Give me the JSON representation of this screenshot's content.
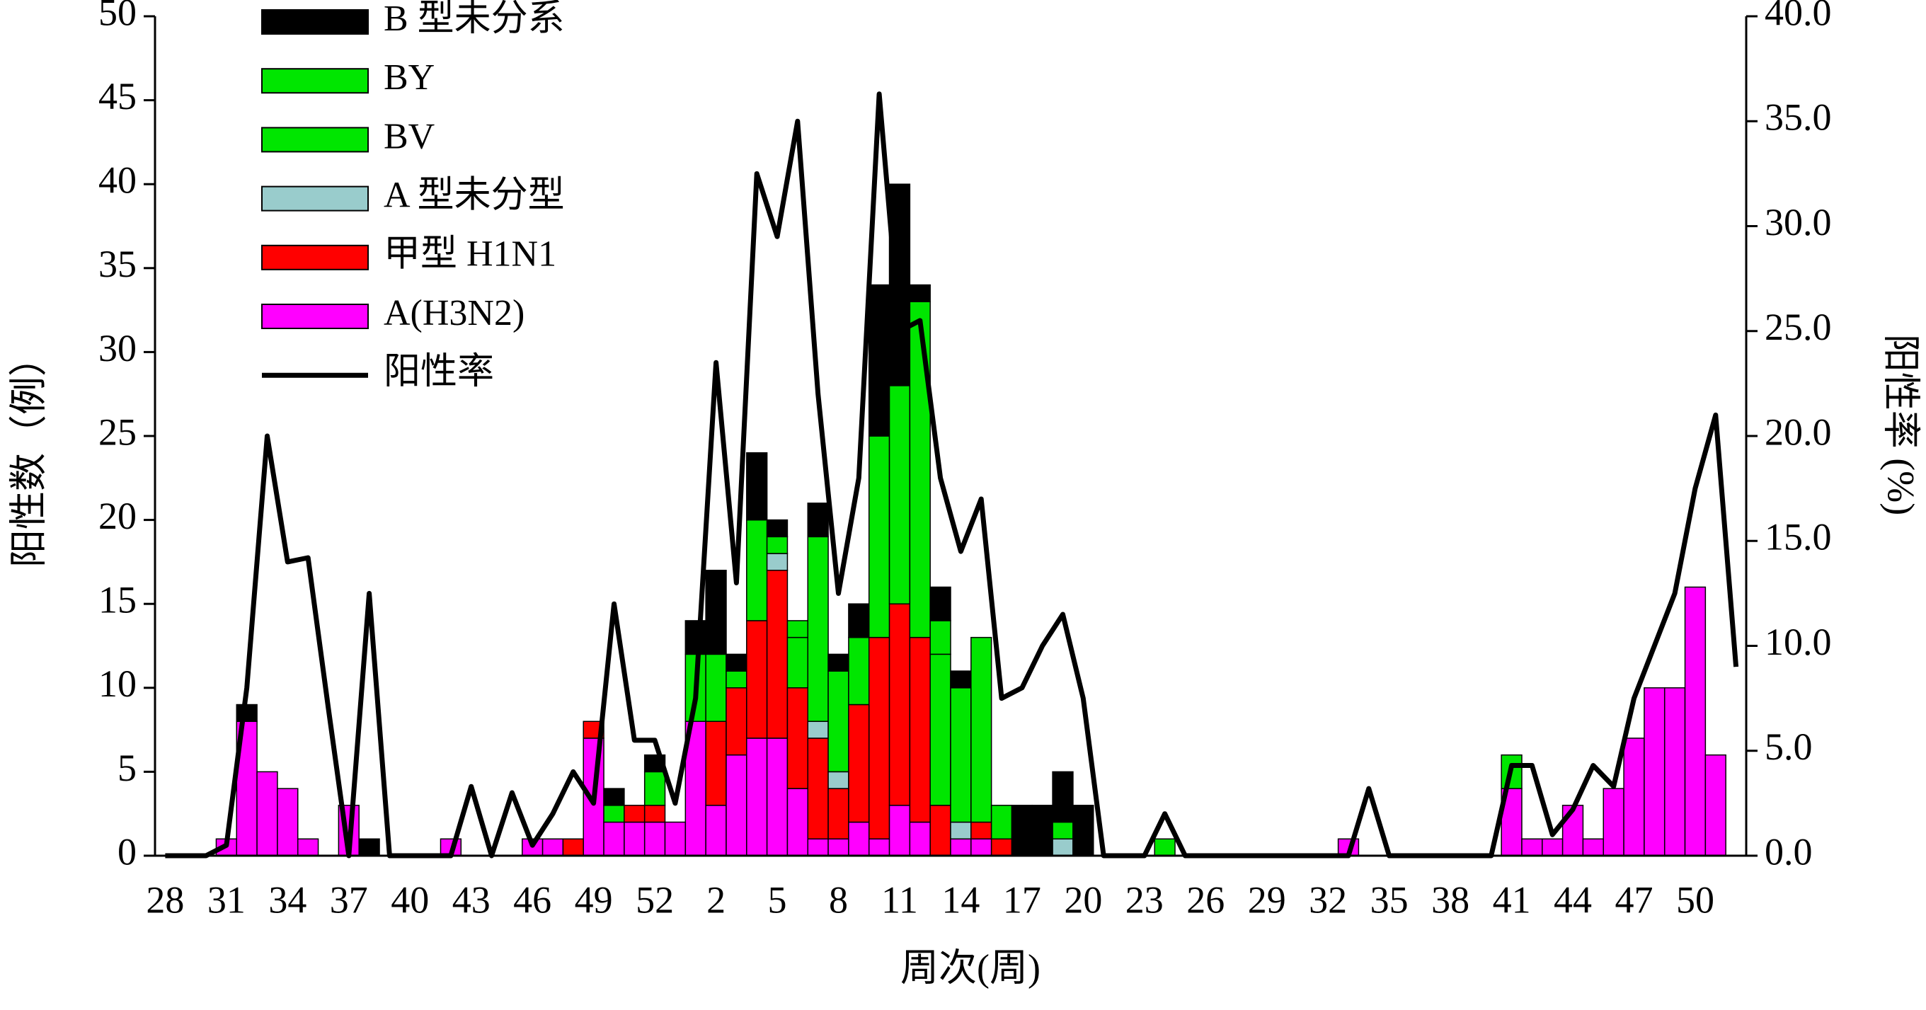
{
  "chart_data": {
    "type": "bar",
    "stacked": true,
    "x_label": "周次(周)",
    "y_label": "阳性数（例）",
    "y2_label": "阳性率 (%)",
    "categories": [
      "28",
      null,
      null,
      "31",
      null,
      null,
      "34",
      null,
      null,
      "37",
      null,
      null,
      "40",
      null,
      null,
      "43",
      null,
      null,
      "46",
      null,
      null,
      "49",
      null,
      null,
      "52",
      null,
      null,
      "2",
      null,
      null,
      "5",
      null,
      null,
      "8",
      null,
      null,
      "11",
      null,
      null,
      "14",
      null,
      null,
      "17",
      null,
      null,
      "20",
      null,
      null,
      "23",
      null,
      null,
      "26",
      null,
      null,
      "29",
      null,
      null,
      "32",
      null,
      null,
      "35",
      null,
      null,
      "38",
      null,
      null,
      "41",
      null,
      null,
      "44",
      null,
      null,
      "47",
      null,
      null,
      "50",
      null,
      null
    ],
    "ylim": [
      0,
      50
    ],
    "yticks": [
      0,
      5,
      10,
      15,
      20,
      25,
      30,
      35,
      40,
      45,
      50
    ],
    "y2lim": [
      0,
      40
    ],
    "y2ticks": [
      {
        "value": 0,
        "label": "0.0"
      },
      {
        "value": 5,
        "label": "5.0"
      },
      {
        "value": 10,
        "label": "10.0"
      },
      {
        "value": 15,
        "label": "15.0"
      },
      {
        "value": 20,
        "label": "20.0"
      },
      {
        "value": 25,
        "label": "25.0"
      },
      {
        "value": 30,
        "label": "30.0"
      },
      {
        "value": 35,
        "label": "35.0"
      },
      {
        "value": 40,
        "label": "40.0"
      }
    ],
    "legend": "upper left",
    "series": [
      {
        "name": "B 型未分系",
        "color": "#000000",
        "values": [
          0,
          0,
          0,
          0,
          1,
          0,
          0,
          0,
          0,
          0,
          1,
          0,
          0,
          0,
          0,
          0,
          0,
          0,
          0,
          0,
          0,
          0,
          1,
          0,
          1,
          0,
          2,
          5,
          1,
          4,
          1,
          0,
          2,
          1,
          2,
          9,
          12,
          1,
          2,
          1,
          0,
          0,
          3,
          3,
          3,
          3,
          0,
          0,
          0,
          0,
          0,
          0,
          0,
          0,
          0,
          0,
          0,
          0,
          0,
          0,
          0,
          0,
          0,
          0,
          0,
          0,
          0,
          0,
          0,
          0,
          0,
          0,
          0,
          0,
          0,
          0,
          0,
          0
        ]
      },
      {
        "name": "BY",
        "color": "#00e600",
        "values": [
          0,
          0,
          0,
          0,
          0,
          0,
          0,
          0,
          0,
          0,
          0,
          0,
          0,
          0,
          0,
          0,
          0,
          0,
          0,
          0,
          0,
          0,
          0,
          0,
          0,
          0,
          0,
          0,
          0,
          0,
          0,
          1,
          0,
          0,
          0,
          0,
          0,
          0,
          2,
          0,
          0,
          0,
          0,
          0,
          0,
          0,
          0,
          0,
          0,
          0,
          0,
          0,
          0,
          0,
          0,
          0,
          0,
          0,
          0,
          0,
          0,
          0,
          0,
          0,
          0,
          0,
          0,
          0,
          0,
          0,
          0,
          0,
          0,
          0,
          0,
          0,
          0,
          0
        ]
      },
      {
        "name": "BV",
        "color": "#00e600",
        "values": [
          0,
          0,
          0,
          0,
          0,
          0,
          0,
          0,
          0,
          0,
          0,
          0,
          0,
          0,
          0,
          0,
          0,
          0,
          0,
          0,
          0,
          0,
          1,
          0,
          2,
          0,
          4,
          4,
          1,
          6,
          1,
          3,
          11,
          6,
          4,
          12,
          13,
          20,
          9,
          8,
          11,
          2,
          0,
          0,
          1,
          0,
          0,
          0,
          0,
          1,
          0,
          0,
          0,
          0,
          0,
          0,
          0,
          0,
          0,
          0,
          0,
          0,
          0,
          0,
          0,
          0,
          2,
          0,
          0,
          0,
          0,
          0,
          0,
          0,
          0,
          0,
          0,
          0
        ]
      },
      {
        "name": "A 型未分型",
        "color": "#99cccc",
        "values": [
          0,
          0,
          0,
          0,
          0,
          0,
          0,
          0,
          0,
          0,
          0,
          0,
          0,
          0,
          0,
          0,
          0,
          0,
          0,
          0,
          0,
          0,
          0,
          0,
          0,
          0,
          0,
          0,
          0,
          0,
          1,
          0,
          1,
          1,
          0,
          0,
          0,
          0,
          0,
          1,
          0,
          0,
          0,
          0,
          1,
          0,
          0,
          0,
          0,
          0,
          0,
          0,
          0,
          0,
          0,
          0,
          0,
          0,
          0,
          0,
          0,
          0,
          0,
          0,
          0,
          0,
          0,
          0,
          0,
          0,
          0,
          0,
          0,
          0,
          0,
          0,
          0,
          0
        ]
      },
      {
        "name": "甲型 H1N1",
        "color": "#ff0000",
        "values": [
          0,
          0,
          0,
          0,
          0,
          0,
          0,
          0,
          0,
          0,
          0,
          0,
          0,
          0,
          0,
          0,
          0,
          0,
          0,
          0,
          1,
          1,
          0,
          1,
          1,
          0,
          0,
          5,
          4,
          7,
          10,
          6,
          6,
          3,
          7,
          12,
          12,
          11,
          3,
          0,
          1,
          1,
          0,
          0,
          0,
          0,
          0,
          0,
          0,
          0,
          0,
          0,
          0,
          0,
          0,
          0,
          0,
          0,
          0,
          0,
          0,
          0,
          0,
          0,
          0,
          0,
          0,
          0,
          0,
          0,
          0,
          0,
          0,
          0,
          0,
          0,
          0,
          0
        ]
      },
      {
        "name": "A(H3N2)",
        "color": "#ff00ff",
        "values": [
          0,
          0,
          0,
          1,
          8,
          5,
          4,
          1,
          0,
          3,
          0,
          0,
          0,
          0,
          1,
          0,
          0,
          0,
          1,
          1,
          0,
          7,
          2,
          2,
          2,
          2,
          8,
          3,
          6,
          7,
          7,
          4,
          1,
          1,
          2,
          1,
          3,
          2,
          0,
          1,
          1,
          0,
          0,
          0,
          0,
          0,
          0,
          0,
          0,
          0,
          0,
          0,
          0,
          0,
          0,
          0,
          0,
          0,
          1,
          0,
          0,
          0,
          0,
          0,
          0,
          0,
          4,
          1,
          1,
          3,
          1,
          4,
          7,
          10,
          10,
          16,
          6,
          0
        ]
      },
      {
        "name": "阳性率",
        "color": "#000000",
        "type": "line",
        "axis": "y2",
        "values": [
          0,
          0,
          0,
          0.5,
          8,
          20,
          14,
          14.2,
          7,
          0,
          12.5,
          0,
          0,
          0,
          0,
          3.3,
          0,
          3,
          0.5,
          2,
          4,
          2.5,
          12,
          5.5,
          5.5,
          2.5,
          7.5,
          23.5,
          13,
          32.5,
          29.5,
          35,
          22,
          12.5,
          18,
          36.3,
          25,
          25.5,
          18,
          14.5,
          17,
          7.5,
          8,
          10,
          11.5,
          7.5,
          0,
          0,
          0,
          2,
          0,
          0,
          0,
          0,
          0,
          0,
          0,
          0,
          0,
          3.2,
          0,
          0,
          0,
          0,
          0,
          0,
          4.3,
          4.3,
          1,
          2.2,
          4.3,
          3.3,
          7.5,
          10,
          12.5,
          17.5,
          21,
          9
        ]
      }
    ]
  }
}
